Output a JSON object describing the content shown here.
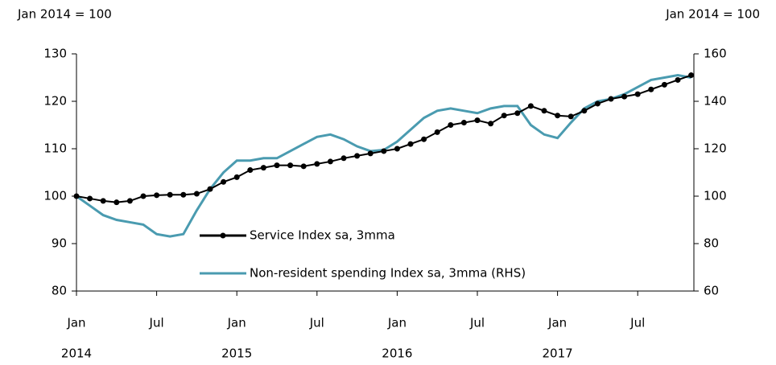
{
  "chart_data": {
    "type": "line",
    "y_unit_label": "Jan 2014 = 100",
    "y2_unit_label": "Jan 2014 = 100",
    "categories": [
      "Jan",
      null,
      null,
      null,
      null,
      null,
      "Jul",
      null,
      null,
      null,
      null,
      null,
      "Jan",
      null,
      null,
      null,
      null,
      null,
      "Jul",
      null,
      null,
      null,
      null,
      null,
      "Jan",
      null,
      null,
      null,
      null,
      null,
      "Jul",
      null,
      null,
      null,
      null,
      null,
      "Jan",
      null,
      null,
      null,
      null,
      null,
      "Jul",
      null,
      null,
      null,
      null
    ],
    "years": [
      "2014",
      "2015",
      "2016",
      "2017"
    ],
    "series": [
      {
        "name": "Service Index sa, 3mma",
        "color": "#000000",
        "axis": "y",
        "markers": true,
        "values": [
          100,
          99.5,
          99,
          98.7,
          99,
          100,
          100.2,
          100.3,
          100.3,
          100.5,
          101.5,
          103,
          104,
          105.5,
          106,
          106.5,
          106.5,
          106.3,
          106.8,
          107.3,
          108,
          108.5,
          109,
          109.5,
          110,
          111,
          112,
          113.5,
          115,
          115.5,
          116,
          115.3,
          117,
          117.5,
          119,
          118,
          117,
          116.8,
          118,
          119.5,
          120.5,
          121,
          121.5,
          122.5,
          123.5,
          124.5,
          125.5
        ]
      },
      {
        "name": "Non-resident spending Index sa, 3mma (RHS)",
        "color": "#4a9bb0",
        "axis": "y2",
        "markers": false,
        "values": [
          100,
          96,
          92,
          90,
          89,
          88,
          84,
          83,
          84,
          94,
          103,
          110,
          115,
          115,
          116,
          116,
          119,
          122,
          125,
          126,
          124,
          121,
          119,
          119.5,
          123,
          128,
          133,
          136,
          137,
          136,
          135,
          137,
          138,
          138,
          130,
          126,
          124.5,
          131,
          137,
          140,
          141,
          143,
          146,
          149,
          150,
          151,
          150
        ]
      }
    ],
    "ylim": [
      80,
      130
    ],
    "yticks": [
      80,
      90,
      100,
      110,
      120,
      130
    ],
    "y2lim": [
      60,
      160
    ],
    "y2ticks": [
      60,
      80,
      100,
      120,
      140,
      160
    ]
  }
}
